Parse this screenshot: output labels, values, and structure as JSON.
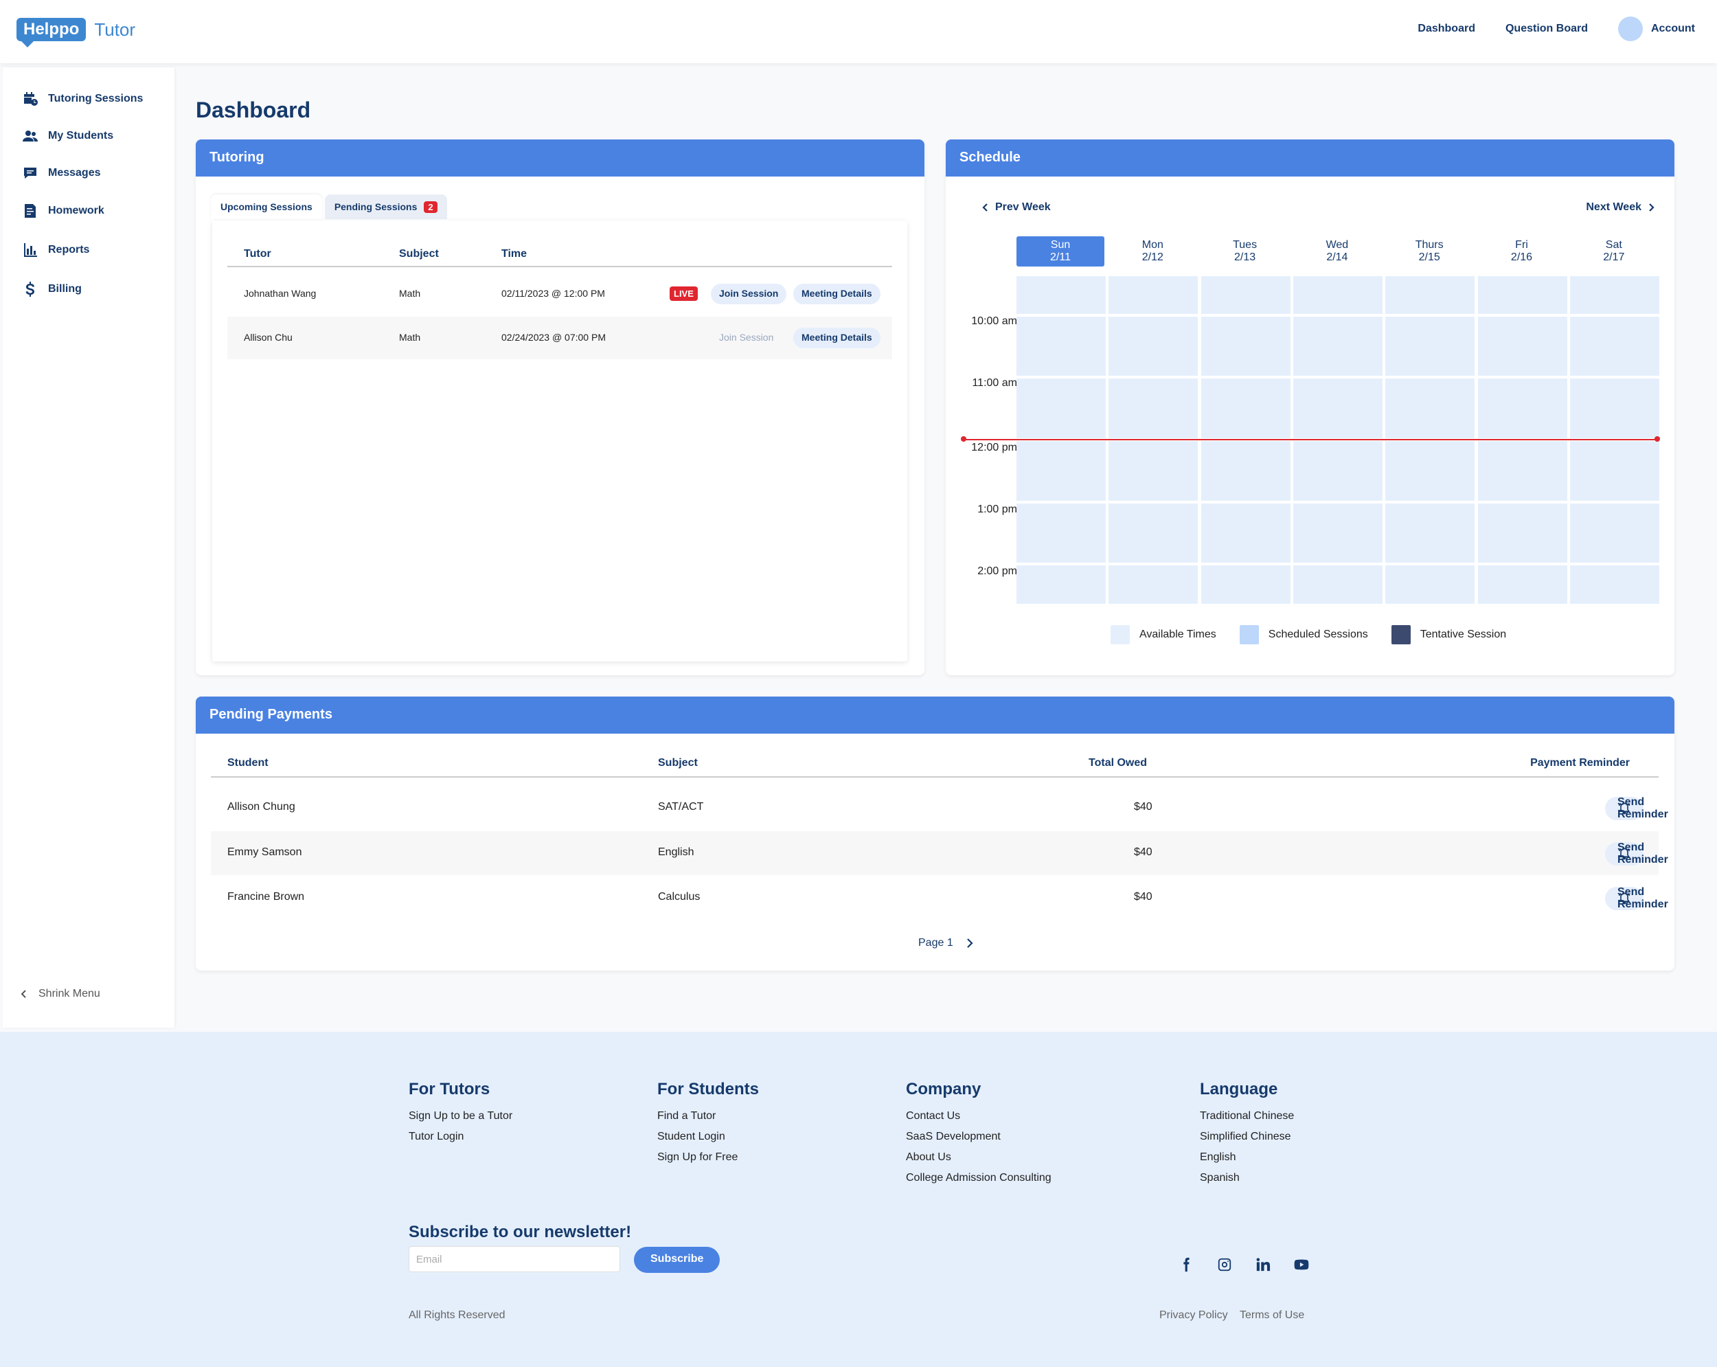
{
  "app": {
    "logo_word": "Helppo",
    "logo_sub": "Tutor"
  },
  "topnav": {
    "dashboard": "Dashboard",
    "question_board": "Question Board",
    "account": "Account"
  },
  "sidebar": {
    "items": [
      {
        "label": "Tutoring Sessions",
        "icon": "calendar-clock-icon"
      },
      {
        "label": "My Students",
        "icon": "users-icon"
      },
      {
        "label": "Messages",
        "icon": "chat-icon"
      },
      {
        "label": "Homework",
        "icon": "document-icon"
      },
      {
        "label": "Reports",
        "icon": "bar-chart-icon"
      },
      {
        "label": "Billing",
        "icon": "dollar-icon"
      }
    ],
    "shrink_label": "Shrink Menu"
  },
  "page_title": "Dashboard",
  "tutoring": {
    "title": "Tutoring",
    "tabs": {
      "upcoming": "Upcoming Sessions",
      "pending": "Pending Sessions",
      "pending_count": "2"
    },
    "columns": {
      "tutor": "Tutor",
      "subject": "Subject",
      "time": "Time"
    },
    "rows": [
      {
        "tutor": "Johnathan Wang",
        "subject": "Math",
        "time": "02/11/2023 @ 12:00 PM",
        "live": "LIVE",
        "join": "Join Session",
        "details": "Meeting Details"
      },
      {
        "tutor": "Allison Chu",
        "subject": "Math",
        "time": "02/24/2023 @ 07:00 PM",
        "join": "Join Session",
        "details": "Meeting Details"
      }
    ]
  },
  "schedule": {
    "title": "Schedule",
    "prev": "Prev Week",
    "next": "Next Week",
    "days": [
      {
        "name": "Sun",
        "date": "2/11"
      },
      {
        "name": "Mon",
        "date": "2/12"
      },
      {
        "name": "Tues",
        "date": "2/13"
      },
      {
        "name": "Wed",
        "date": "2/14"
      },
      {
        "name": "Thurs",
        "date": "2/15"
      },
      {
        "name": "Fri",
        "date": "2/16"
      },
      {
        "name": "Sat",
        "date": "2/17"
      }
    ],
    "times": [
      "10:00 am",
      "11:00 am",
      "12:00 pm",
      "1:00 pm",
      "2:00 pm"
    ],
    "legend": {
      "available": "Available Times",
      "scheduled": "Scheduled Sessions",
      "tentative": "Tentative Session"
    },
    "colors": {
      "available": "#e5effc",
      "scheduled": "#bcd7fa",
      "tentative": "#3d4a70",
      "now_line": "#e0262f"
    }
  },
  "payments": {
    "title": "Pending Payments",
    "columns": {
      "student": "Student",
      "subject": "Subject",
      "total": "Total Owed",
      "reminder": "Payment Reminder"
    },
    "rows": [
      {
        "student": "Allison Chung",
        "subject": "SAT/ACT",
        "total": "$40",
        "action": "Send Reminder"
      },
      {
        "student": "Emmy Samson",
        "subject": "English",
        "total": "$40",
        "action": "Send Reminder"
      },
      {
        "student": "Francine Brown",
        "subject": "Calculus",
        "total": "$40",
        "action": "Send Reminder"
      }
    ],
    "page_label": "Page 1"
  },
  "footer": {
    "tutors": {
      "title": "For Tutors",
      "links": [
        "Sign Up to be a Tutor",
        "Tutor Login"
      ]
    },
    "students": {
      "title": "For Students",
      "links": [
        "Find a Tutor",
        "Student Login",
        "Sign Up for Free"
      ]
    },
    "company": {
      "title": "Company",
      "links": [
        "Contact Us",
        "SaaS Development",
        "About Us",
        "College Admission Consulting"
      ]
    },
    "language": {
      "title": "Language",
      "links": [
        "Traditional Chinese",
        "Simplified Chinese",
        "English",
        "Spanish"
      ]
    },
    "newsletter": {
      "title": "Subscribe to our newsletter!",
      "placeholder": "Email",
      "button": "Subscribe"
    },
    "rights": "All Rights Reserved",
    "privacy": "Privacy Policy",
    "terms": "Terms of Use",
    "social_icons": [
      "facebook-icon",
      "instagram-icon",
      "linkedin-icon",
      "youtube-icon"
    ]
  },
  "colors": {
    "accent": "#4a82e2",
    "navy": "#163a6b",
    "footer_bg": "#e5effc"
  }
}
